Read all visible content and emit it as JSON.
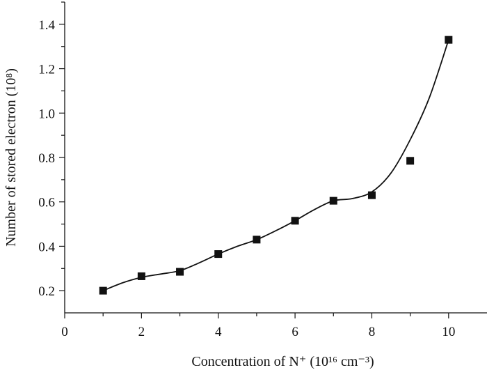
{
  "chart_data": {
    "type": "scatter",
    "title": "",
    "xlabel": "Concentration of N⁺ (10¹⁶ cm⁻³)",
    "ylabel": "Number of stored electron (10⁸)",
    "xlim": [
      0,
      11
    ],
    "ylim": [
      0.1,
      1.5
    ],
    "x_ticks": [
      0,
      2,
      4,
      6,
      8,
      10
    ],
    "x_tick_labels": [
      "0",
      "2",
      "4",
      "6",
      "8",
      "10"
    ],
    "y_ticks": [
      0.2,
      0.4,
      0.6,
      0.8,
      1.0,
      1.2,
      1.4
    ],
    "y_tick_labels": [
      "0.2",
      "0.4",
      "0.6",
      "0.8",
      "1.0",
      "1.2",
      "1.4"
    ],
    "grid": false,
    "legend": "none",
    "marker": "square",
    "fit_curve": "smooth",
    "color": "#111111",
    "series": [
      {
        "x": [
          1,
          2,
          3,
          4,
          5,
          6,
          7,
          8,
          9,
          10
        ],
        "y": [
          0.2,
          0.265,
          0.285,
          0.365,
          0.43,
          0.515,
          0.605,
          0.63,
          0.785,
          1.33
        ]
      }
    ],
    "curve": {
      "x": [
        1,
        1.5,
        2,
        2.5,
        3,
        3.5,
        4,
        4.5,
        5,
        5.5,
        6,
        6.5,
        7,
        7.5,
        8,
        8.5,
        9,
        9.5,
        10
      ],
      "y": [
        0.2,
        0.235,
        0.26,
        0.275,
        0.29,
        0.325,
        0.365,
        0.4,
        0.43,
        0.47,
        0.515,
        0.565,
        0.605,
        0.615,
        0.645,
        0.73,
        0.88,
        1.07,
        1.33
      ]
    }
  }
}
